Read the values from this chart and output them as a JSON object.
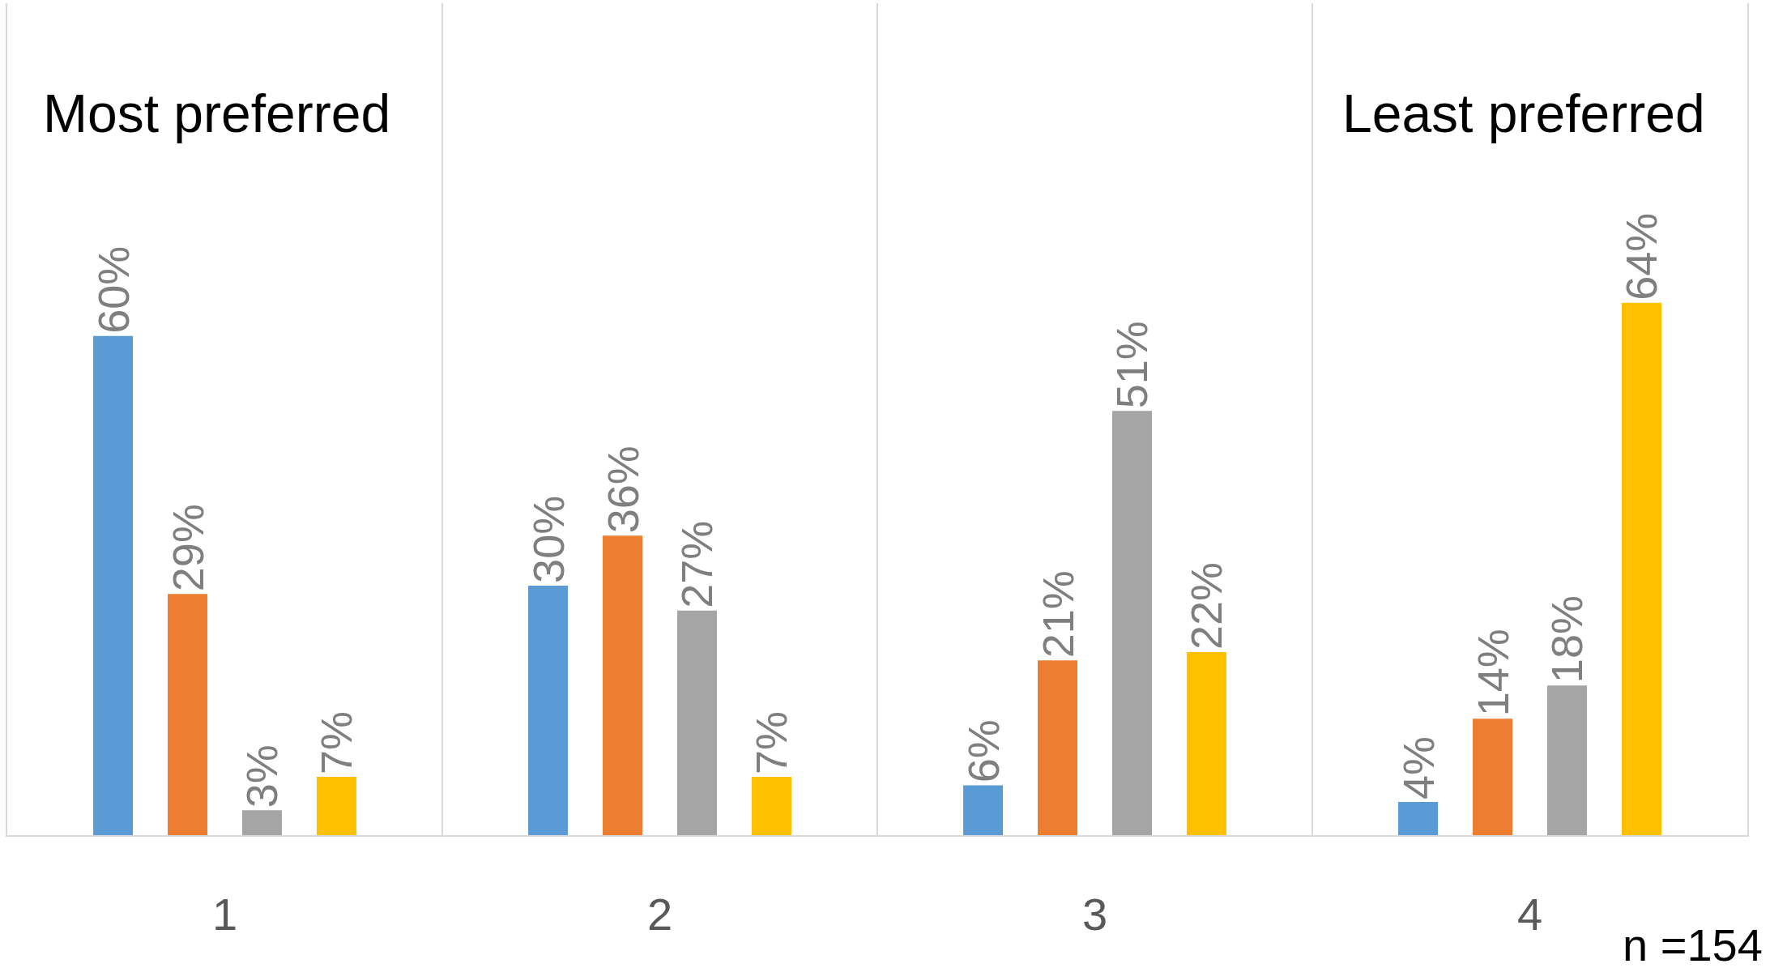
{
  "chart_data": {
    "type": "bar",
    "categories": [
      "1",
      "2",
      "3",
      "4"
    ],
    "series": [
      {
        "color": "#5b9bd5",
        "values": [
          60,
          30,
          6,
          4
        ],
        "value_labels": [
          "60%",
          "30%",
          "6%",
          "4%"
        ]
      },
      {
        "color": "#ed7d31",
        "values": [
          29,
          36,
          21,
          14
        ],
        "value_labels": [
          "29%",
          "36%",
          "21%",
          "14%"
        ]
      },
      {
        "color": "#a5a5a5",
        "values": [
          3,
          27,
          51,
          18
        ],
        "value_labels": [
          "3%",
          "27%",
          "51%",
          "18%"
        ]
      },
      {
        "color": "#ffc000",
        "values": [
          7,
          7,
          22,
          64
        ],
        "value_labels": [
          "7%",
          "7%",
          "22%",
          "64%"
        ]
      }
    ],
    "ylim": [
      0,
      100
    ],
    "grid": "x",
    "tick_labels": "x",
    "annotations": [
      "Most preferred",
      "Least preferred",
      "n =154"
    ]
  }
}
